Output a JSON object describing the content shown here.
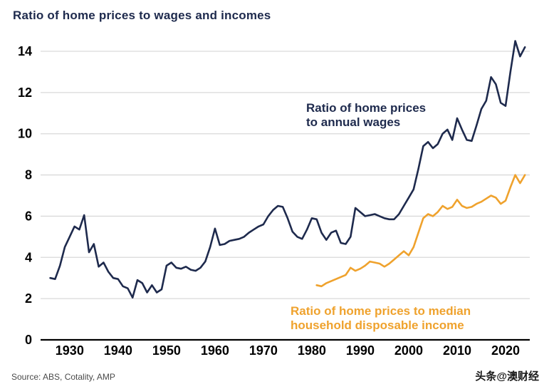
{
  "page": {
    "title": "Ratio of home prices to wages and incomes",
    "source": "Source: ABS, Cotality, AMP",
    "watermark": "头条@澳财经"
  },
  "chart_data": {
    "type": "line",
    "title": "Ratio of home prices to wages and incomes",
    "xlabel": "",
    "ylabel": "",
    "x_range": [
      1924,
      2025
    ],
    "y_range": [
      0,
      14
    ],
    "x_ticks": [
      1930,
      1940,
      1950,
      1960,
      1970,
      1980,
      1990,
      2000,
      2010,
      2020
    ],
    "y_ticks": [
      0,
      2,
      4,
      6,
      8,
      10,
      12,
      14
    ],
    "grid": true,
    "legend_position": "annotations-on-chart",
    "colors": {
      "navy": "#1e2a4d",
      "orange": "#efa22d",
      "grid": "#d9d9d9",
      "axis": "#000000"
    },
    "annotations": [
      {
        "line1": "Ratio of home prices",
        "line2": "to annual wages",
        "color": "#1e2a4d"
      },
      {
        "line1": "Ratio of home prices to median",
        "line2": "household disposable income",
        "color": "#efa22d"
      }
    ],
    "series": [
      {
        "name": "Ratio of home prices to annual wages",
        "color": "#1e2a4d",
        "points": [
          [
            1926,
            3.0
          ],
          [
            1927,
            2.95
          ],
          [
            1928,
            3.6
          ],
          [
            1929,
            4.5
          ],
          [
            1930,
            5.0
          ],
          [
            1931,
            5.5
          ],
          [
            1932,
            5.35
          ],
          [
            1933,
            6.05
          ],
          [
            1934,
            4.25
          ],
          [
            1935,
            4.65
          ],
          [
            1936,
            3.55
          ],
          [
            1937,
            3.75
          ],
          [
            1938,
            3.3
          ],
          [
            1939,
            3.0
          ],
          [
            1940,
            2.95
          ],
          [
            1941,
            2.6
          ],
          [
            1942,
            2.5
          ],
          [
            1943,
            2.05
          ],
          [
            1944,
            2.9
          ],
          [
            1945,
            2.75
          ],
          [
            1946,
            2.3
          ],
          [
            1947,
            2.65
          ],
          [
            1948,
            2.3
          ],
          [
            1949,
            2.45
          ],
          [
            1950,
            3.6
          ],
          [
            1951,
            3.75
          ],
          [
            1952,
            3.5
          ],
          [
            1953,
            3.45
          ],
          [
            1954,
            3.55
          ],
          [
            1955,
            3.4
          ],
          [
            1956,
            3.35
          ],
          [
            1957,
            3.5
          ],
          [
            1958,
            3.8
          ],
          [
            1959,
            4.5
          ],
          [
            1960,
            5.4
          ],
          [
            1961,
            4.6
          ],
          [
            1962,
            4.65
          ],
          [
            1963,
            4.8
          ],
          [
            1964,
            4.85
          ],
          [
            1965,
            4.9
          ],
          [
            1966,
            5.0
          ],
          [
            1967,
            5.2
          ],
          [
            1968,
            5.35
          ],
          [
            1969,
            5.5
          ],
          [
            1970,
            5.6
          ],
          [
            1971,
            6.0
          ],
          [
            1972,
            6.3
          ],
          [
            1973,
            6.5
          ],
          [
            1974,
            6.45
          ],
          [
            1975,
            5.9
          ],
          [
            1976,
            5.25
          ],
          [
            1977,
            5.0
          ],
          [
            1978,
            4.9
          ],
          [
            1979,
            5.35
          ],
          [
            1980,
            5.9
          ],
          [
            1981,
            5.85
          ],
          [
            1982,
            5.2
          ],
          [
            1983,
            4.85
          ],
          [
            1984,
            5.2
          ],
          [
            1985,
            5.3
          ],
          [
            1986,
            4.7
          ],
          [
            1987,
            4.65
          ],
          [
            1988,
            5.0
          ],
          [
            1989,
            6.4
          ],
          [
            1990,
            6.2
          ],
          [
            1991,
            6.0
          ],
          [
            1992,
            6.05
          ],
          [
            1993,
            6.1
          ],
          [
            1994,
            6.0
          ],
          [
            1995,
            5.9
          ],
          [
            1996,
            5.85
          ],
          [
            1997,
            5.85
          ],
          [
            1998,
            6.1
          ],
          [
            1999,
            6.5
          ],
          [
            2000,
            6.9
          ],
          [
            2001,
            7.3
          ],
          [
            2002,
            8.3
          ],
          [
            2003,
            9.4
          ],
          [
            2004,
            9.6
          ],
          [
            2005,
            9.3
          ],
          [
            2006,
            9.5
          ],
          [
            2007,
            10.0
          ],
          [
            2008,
            10.2
          ],
          [
            2009,
            9.7
          ],
          [
            2010,
            10.75
          ],
          [
            2011,
            10.2
          ],
          [
            2012,
            9.7
          ],
          [
            2013,
            9.65
          ],
          [
            2014,
            10.4
          ],
          [
            2015,
            11.2
          ],
          [
            2016,
            11.6
          ],
          [
            2017,
            12.75
          ],
          [
            2018,
            12.4
          ],
          [
            2019,
            11.5
          ],
          [
            2020,
            11.35
          ],
          [
            2021,
            13.0
          ],
          [
            2022,
            14.5
          ],
          [
            2023,
            13.75
          ],
          [
            2024,
            14.2
          ]
        ]
      },
      {
        "name": "Ratio of home prices to median household disposable income",
        "color": "#efa22d",
        "points": [
          [
            1981,
            2.65
          ],
          [
            1982,
            2.6
          ],
          [
            1983,
            2.75
          ],
          [
            1984,
            2.85
          ],
          [
            1985,
            2.95
          ],
          [
            1986,
            3.05
          ],
          [
            1987,
            3.15
          ],
          [
            1988,
            3.5
          ],
          [
            1989,
            3.35
          ],
          [
            1990,
            3.45
          ],
          [
            1991,
            3.6
          ],
          [
            1992,
            3.8
          ],
          [
            1993,
            3.75
          ],
          [
            1994,
            3.7
          ],
          [
            1995,
            3.55
          ],
          [
            1996,
            3.7
          ],
          [
            1997,
            3.9
          ],
          [
            1998,
            4.1
          ],
          [
            1999,
            4.3
          ],
          [
            2000,
            4.1
          ],
          [
            2001,
            4.5
          ],
          [
            2002,
            5.2
          ],
          [
            2003,
            5.9
          ],
          [
            2004,
            6.1
          ],
          [
            2005,
            6.0
          ],
          [
            2006,
            6.2
          ],
          [
            2007,
            6.5
          ],
          [
            2008,
            6.35
          ],
          [
            2009,
            6.45
          ],
          [
            2010,
            6.8
          ],
          [
            2011,
            6.5
          ],
          [
            2012,
            6.4
          ],
          [
            2013,
            6.45
          ],
          [
            2014,
            6.6
          ],
          [
            2015,
            6.7
          ],
          [
            2016,
            6.85
          ],
          [
            2017,
            7.0
          ],
          [
            2018,
            6.9
          ],
          [
            2019,
            6.6
          ],
          [
            2020,
            6.75
          ],
          [
            2021,
            7.4
          ],
          [
            2022,
            8.0
          ],
          [
            2023,
            7.6
          ],
          [
            2024,
            8.0
          ]
        ]
      }
    ]
  }
}
